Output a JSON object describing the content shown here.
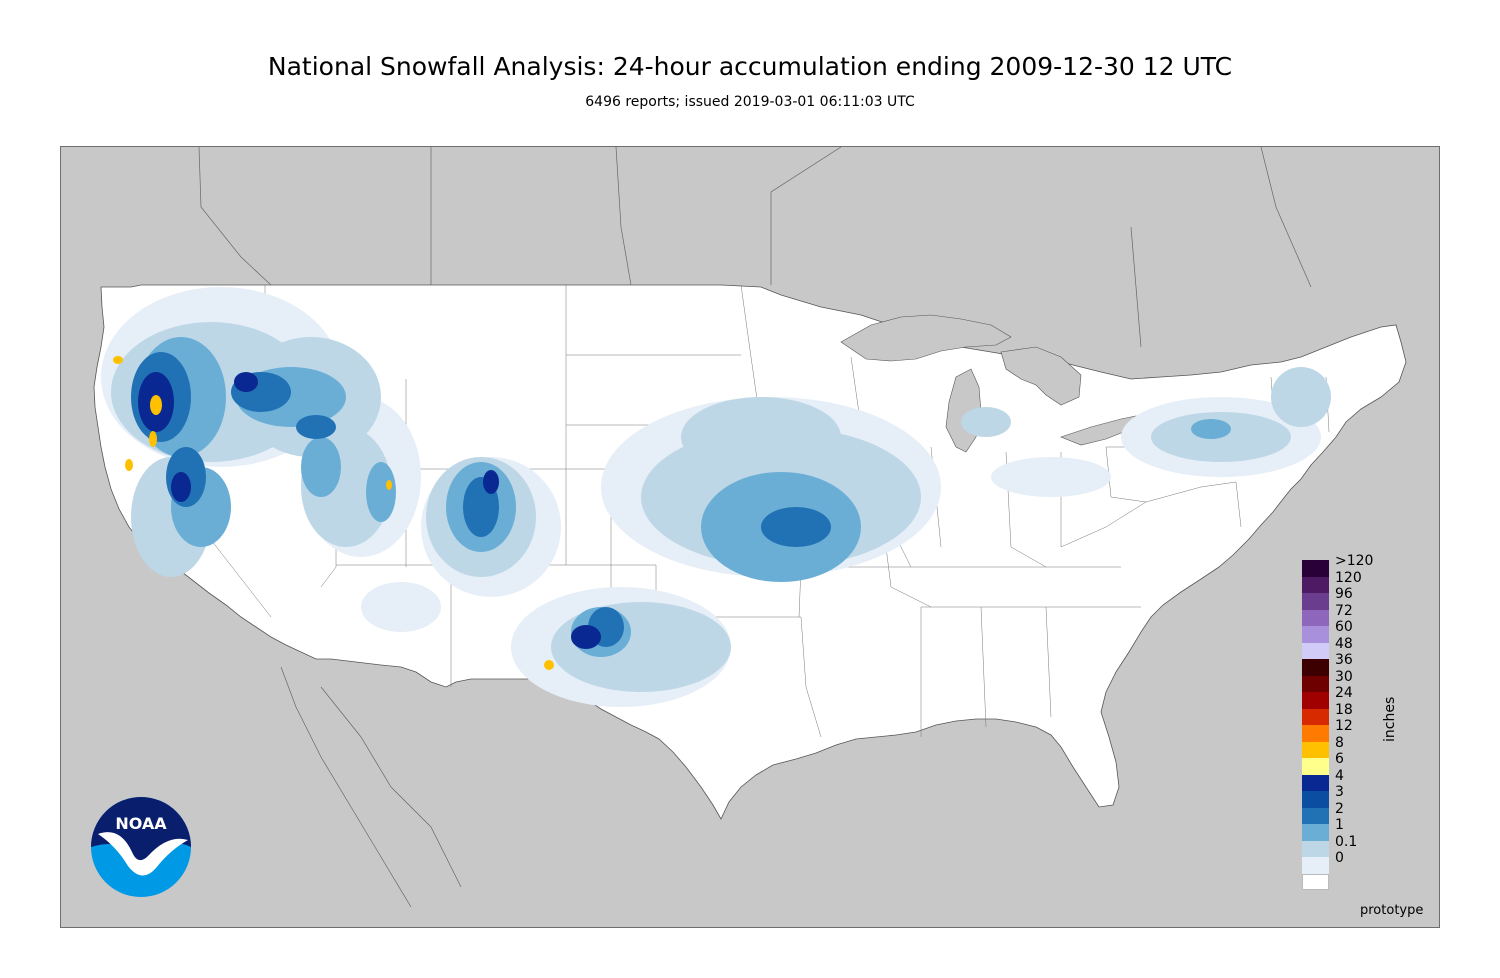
{
  "header": {
    "title": "National Snowfall Analysis: 24-hour accumulation ending 2009-12-30 12 UTC",
    "subtitle": "6496 reports; issued 2019-03-01 06:11:03 UTC"
  },
  "legend": {
    "units": "inches",
    "items": [
      {
        "label": ">120",
        "color": "#2a0038"
      },
      {
        "label": "120",
        "color": "#4d1a63"
      },
      {
        "label": "96",
        "color": "#6a3d8f"
      },
      {
        "label": "72",
        "color": "#8e67bd"
      },
      {
        "label": "60",
        "color": "#a990dc"
      },
      {
        "label": "48",
        "color": "#d1cbf7"
      },
      {
        "label": "36",
        "color": "#3d0000"
      },
      {
        "label": "30",
        "color": "#6e0000"
      },
      {
        "label": "24",
        "color": "#a00000"
      },
      {
        "label": "18",
        "color": "#d72a00"
      },
      {
        "label": "12",
        "color": "#ff7a00"
      },
      {
        "label": "8",
        "color": "#ffc000"
      },
      {
        "label": "6",
        "color": "#ffff8c"
      },
      {
        "label": "4",
        "color": "#0a2891"
      },
      {
        "label": "3",
        "color": "#0b4ea1"
      },
      {
        "label": "2",
        "color": "#2171b5"
      },
      {
        "label": "1",
        "color": "#6aaed6"
      },
      {
        "label": "0.1",
        "color": "#bdd7e7"
      },
      {
        "label": "0",
        "color": "#e6eef7"
      },
      {
        "label": "",
        "color": "#ffffff"
      }
    ]
  },
  "map": {
    "background_color": "#c8c8c8",
    "land_color": "#ffffff",
    "border_color": "#555555"
  },
  "footer": {
    "note": "prototype"
  },
  "logo": {
    "text": "NOAA",
    "icon": "noaa-logo-icon"
  }
}
